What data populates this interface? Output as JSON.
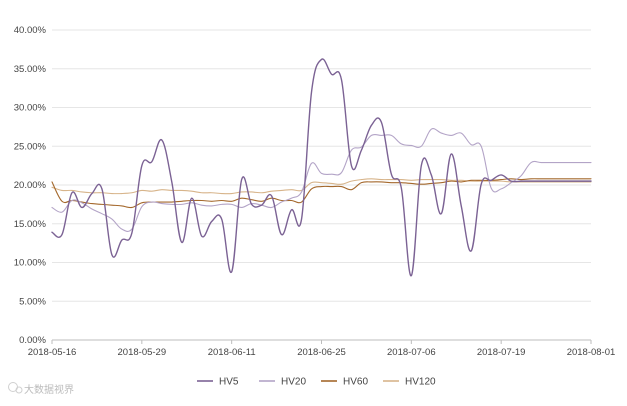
{
  "chart_data": {
    "type": "line",
    "title": "",
    "xlabel": "",
    "ylabel": "",
    "ylim": [
      0,
      40
    ],
    "y_ticks": [
      "0.00%",
      "5.00%",
      "10.00%",
      "15.00%",
      "20.00%",
      "25.00%",
      "30.00%",
      "35.00%",
      "40.00%"
    ],
    "x_ticks": [
      "2018-05-16",
      "2018-05-29",
      "2018-06-11",
      "2018-06-25",
      "2018-07-06",
      "2018-07-19",
      "2018-08-01"
    ],
    "grid": "horizontal",
    "legend_position": "bottom",
    "x": [
      "2018-05-16",
      "2018-05-17",
      "2018-05-18",
      "2018-05-21",
      "2018-05-22",
      "2018-05-23",
      "2018-05-24",
      "2018-05-25",
      "2018-05-28",
      "2018-05-29",
      "2018-05-30",
      "2018-05-31",
      "2018-06-01",
      "2018-06-04",
      "2018-06-05",
      "2018-06-06",
      "2018-06-07",
      "2018-06-08",
      "2018-06-11",
      "2018-06-12",
      "2018-06-13",
      "2018-06-14",
      "2018-06-15",
      "2018-06-19",
      "2018-06-20",
      "2018-06-21",
      "2018-06-22",
      "2018-06-25",
      "2018-06-26",
      "2018-06-27",
      "2018-06-28",
      "2018-06-29",
      "2018-07-02",
      "2018-07-03",
      "2018-07-04",
      "2018-07-05",
      "2018-07-06",
      "2018-07-09",
      "2018-07-10",
      "2018-07-11",
      "2018-07-12",
      "2018-07-13",
      "2018-07-16",
      "2018-07-17",
      "2018-07-18",
      "2018-07-19",
      "2018-07-20",
      "2018-07-23",
      "2018-07-24",
      "2018-07-25",
      "2018-07-26",
      "2018-07-27",
      "2018-07-30",
      "2018-07-31",
      "2018-08-01"
    ],
    "series": [
      {
        "name": "HV5",
        "color": "#7b6294",
        "values": [
          13.9,
          13.6,
          19.0,
          17.1,
          18.9,
          19.5,
          11.0,
          12.9,
          13.8,
          22.5,
          23.0,
          25.8,
          20.4,
          12.6,
          18.3,
          13.4,
          15.3,
          15.6,
          8.8,
          20.7,
          17.5,
          17.4,
          18.6,
          13.6,
          16.8,
          15.6,
          32.0,
          36.2,
          34.3,
          33.6,
          22.5,
          24.5,
          27.7,
          28.1,
          21.4,
          19.6,
          8.3,
          22.5,
          21.3,
          16.3,
          24.0,
          17.3,
          11.5,
          20.1,
          20.6,
          21.3,
          20.5,
          20.5,
          20.5,
          20.5,
          20.5,
          20.5,
          20.5,
          20.5,
          20.5
        ]
      },
      {
        "name": "HV20",
        "color": "#b3a4c7",
        "values": [
          17.1,
          16.5,
          18.0,
          17.7,
          16.9,
          16.3,
          15.6,
          14.3,
          14.3,
          17.2,
          17.8,
          17.6,
          17.5,
          17.5,
          17.7,
          17.4,
          17.3,
          17.5,
          17.5,
          17.1,
          17.6,
          17.4,
          17.1,
          17.8,
          18.3,
          19.1,
          22.8,
          21.5,
          21.4,
          21.6,
          24.5,
          24.9,
          26.4,
          26.4,
          26.4,
          25.3,
          25.1,
          25.0,
          27.2,
          26.7,
          26.4,
          26.7,
          25.2,
          25.0,
          19.6,
          19.5,
          20.3,
          21.2,
          22.9,
          22.9,
          22.9,
          22.9,
          22.9,
          22.9,
          22.9
        ]
      },
      {
        "name": "HV60",
        "color": "#a4682c",
        "values": [
          20.4,
          17.9,
          18.0,
          17.8,
          17.6,
          17.5,
          17.4,
          17.3,
          17.1,
          17.7,
          17.8,
          17.8,
          17.8,
          17.9,
          18.0,
          18.0,
          17.9,
          18.0,
          17.9,
          18.3,
          18.1,
          17.9,
          18.3,
          18.0,
          18.0,
          17.8,
          19.5,
          19.8,
          19.8,
          19.8,
          19.4,
          20.3,
          20.4,
          20.4,
          20.3,
          20.3,
          20.2,
          20.1,
          20.2,
          20.3,
          20.5,
          20.4,
          20.6,
          20.6,
          20.6,
          20.7,
          20.8,
          20.7,
          20.8,
          20.8,
          20.8,
          20.8,
          20.8,
          20.8,
          20.8
        ]
      },
      {
        "name": "HV120",
        "color": "#d7b48a",
        "values": [
          19.7,
          19.3,
          19.3,
          19.1,
          19.0,
          19.0,
          18.9,
          18.9,
          19.0,
          19.3,
          19.2,
          19.4,
          19.3,
          19.3,
          19.2,
          19.0,
          19.0,
          18.9,
          18.9,
          19.1,
          19.1,
          19.0,
          19.2,
          19.3,
          19.4,
          19.3,
          20.3,
          20.3,
          20.2,
          20.1,
          20.5,
          20.7,
          20.8,
          20.7,
          20.7,
          20.7,
          20.6,
          20.7,
          20.7,
          20.7,
          20.6,
          20.6,
          20.5,
          20.5,
          20.5,
          20.5,
          20.4,
          20.4,
          20.4,
          20.4,
          20.4,
          20.4,
          20.4,
          20.4,
          20.4
        ]
      }
    ]
  },
  "watermark": {
    "text": "大数据视界"
  }
}
